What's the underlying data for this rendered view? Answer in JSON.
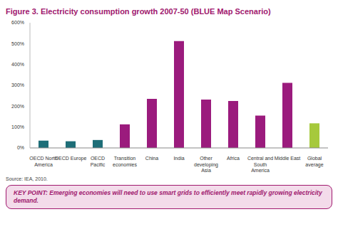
{
  "chart_data": {
    "type": "bar",
    "title": "Figure 3. Electricity consumption growth 2007-50 (BLUE Map Scenario)",
    "source": "Source: IEA, 2010.",
    "key_point": "KEY POINT: Emerging economies will need to use smart grids to efficiently meet rapidly growing electricity demand.",
    "categories": [
      "OECD North America",
      "OECD Europe",
      "OECD Pacific",
      "Transition economies",
      "China",
      "India",
      "Other developing Asia",
      "Africa",
      "Central and South America",
      "Middle East",
      "Global average"
    ],
    "values": [
      35,
      32,
      38,
      113,
      235,
      512,
      232,
      225,
      155,
      312,
      118
    ],
    "colors": [
      "#1e6e78",
      "#1e6e78",
      "#1e6e78",
      "#9b1b7d",
      "#9b1b7d",
      "#9b1b7d",
      "#9b1b7d",
      "#9b1b7d",
      "#9b1b7d",
      "#9b1b7d",
      "#a6c93c"
    ],
    "ylim": [
      0,
      600
    ],
    "yticks": [
      {
        "value": 0,
        "label": "0%"
      },
      {
        "value": 100,
        "label": "100%"
      },
      {
        "value": 200,
        "label": "200%"
      },
      {
        "value": 300,
        "label": "300%"
      },
      {
        "value": 400,
        "label": "400%"
      },
      {
        "value": 500,
        "label": "500%"
      },
      {
        "value": 600,
        "label": "600%"
      }
    ],
    "grid": false
  }
}
